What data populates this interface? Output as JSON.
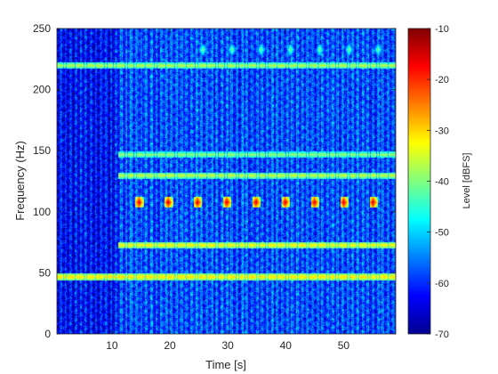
{
  "chart_data": {
    "type": "heatmap",
    "title": "",
    "xlabel": "Time [s]",
    "ylabel": "Frequency (Hz)",
    "xlim": [
      0.5,
      59
    ],
    "ylim": [
      0,
      250
    ],
    "x_ticks": [
      10,
      20,
      30,
      40,
      50
    ],
    "y_ticks": [
      0,
      50,
      100,
      150,
      200,
      250
    ],
    "colorbar": {
      "label": "Level [dBFS]",
      "colormap": "jet",
      "clim": [
        -70,
        -10
      ],
      "ticks": [
        -10,
        -20,
        -30,
        -40,
        -50,
        -60,
        -70
      ]
    },
    "background_level_dbfs": -58,
    "onset_time_s": 11,
    "pulse_period_s": 5.05,
    "tones": [
      {
        "freq_hz": 47,
        "level_dbfs": -30,
        "start_s": 0.5
      },
      {
        "freq_hz": 73,
        "level_dbfs": -32,
        "start_s": 11
      },
      {
        "freq_hz": 108,
        "level_dbfs": -14,
        "start_s": 14,
        "periodic_pulse": true
      },
      {
        "freq_hz": 130,
        "level_dbfs": -35,
        "start_s": 11
      },
      {
        "freq_hz": 147,
        "level_dbfs": -38,
        "start_s": 11
      },
      {
        "freq_hz": 220,
        "level_dbfs": -36,
        "start_s": 0.5
      },
      {
        "freq_hz": 233,
        "level_dbfs": -38,
        "start_s": 25,
        "periodic_pulse": true
      }
    ]
  },
  "colors": {
    "axis": "#262626",
    "background": "#ffffff"
  }
}
